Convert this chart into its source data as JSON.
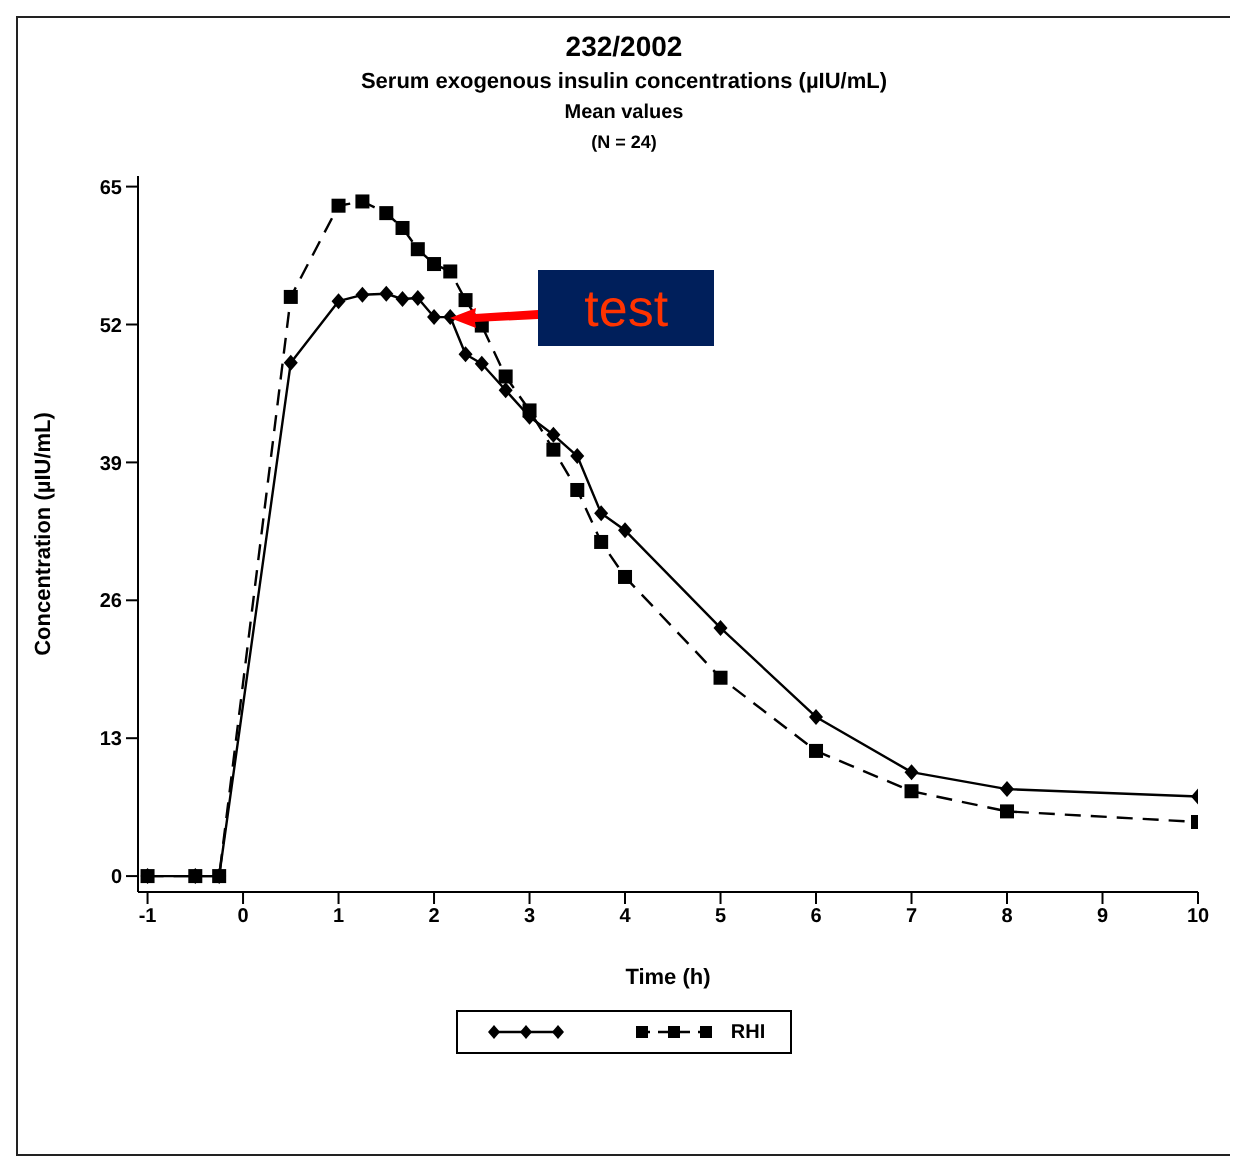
{
  "chart_data": {
    "type": "line",
    "title": "232/2002",
    "subtitle": "Serum exogenous insulin concentrations (µIU/mL)\nMean values\n(N = 24)",
    "xlabel": "Time (h)",
    "ylabel": "Concentration (µIU/mL)",
    "xlim": [
      -1.1,
      10
    ],
    "xticks": [
      -1,
      0,
      1,
      2,
      3,
      4,
      5,
      6,
      7,
      8,
      9,
      10
    ],
    "ylim": [
      -1.5,
      66
    ],
    "yticks": [
      0,
      13,
      26,
      39,
      52,
      65
    ],
    "legend": "bottom",
    "annotations": [
      {
        "text": "test",
        "x": 2.17,
        "y": 52.7
      }
    ],
    "series": [
      {
        "color": "#000000",
        "marker": "diamond",
        "line_style": "solid",
        "x": [
          -1,
          -0.5,
          -0.25,
          0.5,
          1,
          1.25,
          1.5,
          1.67,
          1.83,
          2,
          2.17,
          2.33,
          2.5,
          2.75,
          3,
          3.25,
          3.5,
          3.75,
          4,
          5,
          6,
          7,
          8,
          10
        ],
        "values": [
          0,
          0,
          0,
          48.4,
          54.2,
          54.8,
          54.9,
          54.4,
          54.5,
          52.7,
          52.7,
          49.2,
          48.3,
          45.8,
          43.3,
          41.6,
          39.6,
          34.2,
          32.6,
          23.4,
          15.0,
          9.8,
          8.2,
          7.5
        ]
      },
      {
        "name": "RHI",
        "color": "#000000",
        "marker": "square",
        "line_style": "dashed",
        "x": [
          -1,
          -0.5,
          -0.25,
          0.5,
          1,
          1.25,
          1.5,
          1.67,
          1.83,
          2,
          2.17,
          2.33,
          2.5,
          2.75,
          3,
          3.25,
          3.5,
          3.75,
          4,
          5,
          6,
          7,
          8,
          10
        ],
        "values": [
          0,
          0,
          0,
          54.6,
          63.2,
          63.6,
          62.5,
          61.1,
          59.1,
          57.7,
          57.0,
          54.3,
          51.9,
          47.1,
          43.9,
          40.2,
          36.4,
          31.5,
          28.2,
          18.7,
          11.8,
          8.0,
          6.1,
          5.1
        ]
      }
    ]
  }
}
